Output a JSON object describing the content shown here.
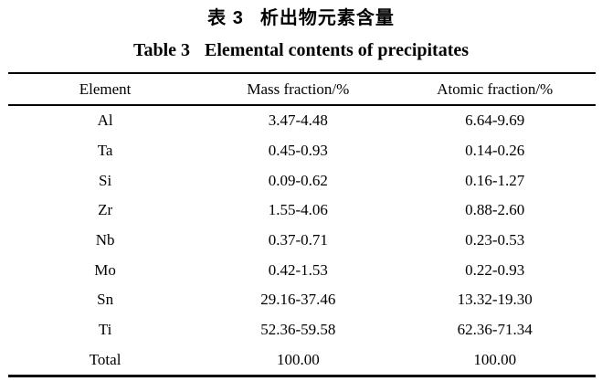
{
  "page": {
    "background_color": "#ffffff",
    "text_color": "#000000"
  },
  "caption": {
    "zh_label": "表 3",
    "zh_title": "析出物元素含量",
    "en_label": "Table 3",
    "en_title": "Elemental contents of precipitates"
  },
  "table": {
    "columns": [
      "Element",
      "Mass fraction/%",
      "Atomic fraction/%"
    ],
    "rows": [
      {
        "element": "Al",
        "mass_fraction": "3.47-4.48",
        "atomic_fraction": "6.64-9.69"
      },
      {
        "element": "Ta",
        "mass_fraction": "0.45-0.93",
        "atomic_fraction": "0.14-0.26"
      },
      {
        "element": "Si",
        "mass_fraction": "0.09-0.62",
        "atomic_fraction": "0.16-1.27"
      },
      {
        "element": "Zr",
        "mass_fraction": "1.55-4.06",
        "atomic_fraction": "0.88-2.60"
      },
      {
        "element": "Nb",
        "mass_fraction": "0.37-0.71",
        "atomic_fraction": "0.23-0.53"
      },
      {
        "element": "Mo",
        "mass_fraction": "0.42-1.53",
        "atomic_fraction": "0.22-0.93"
      },
      {
        "element": "Sn",
        "mass_fraction": "29.16-37.46",
        "atomic_fraction": "13.32-19.30"
      },
      {
        "element": "Ti",
        "mass_fraction": "52.36-59.58",
        "atomic_fraction": "62.36-71.34"
      },
      {
        "element": "Total",
        "mass_fraction": "100.00",
        "atomic_fraction": "100.00"
      }
    ]
  }
}
